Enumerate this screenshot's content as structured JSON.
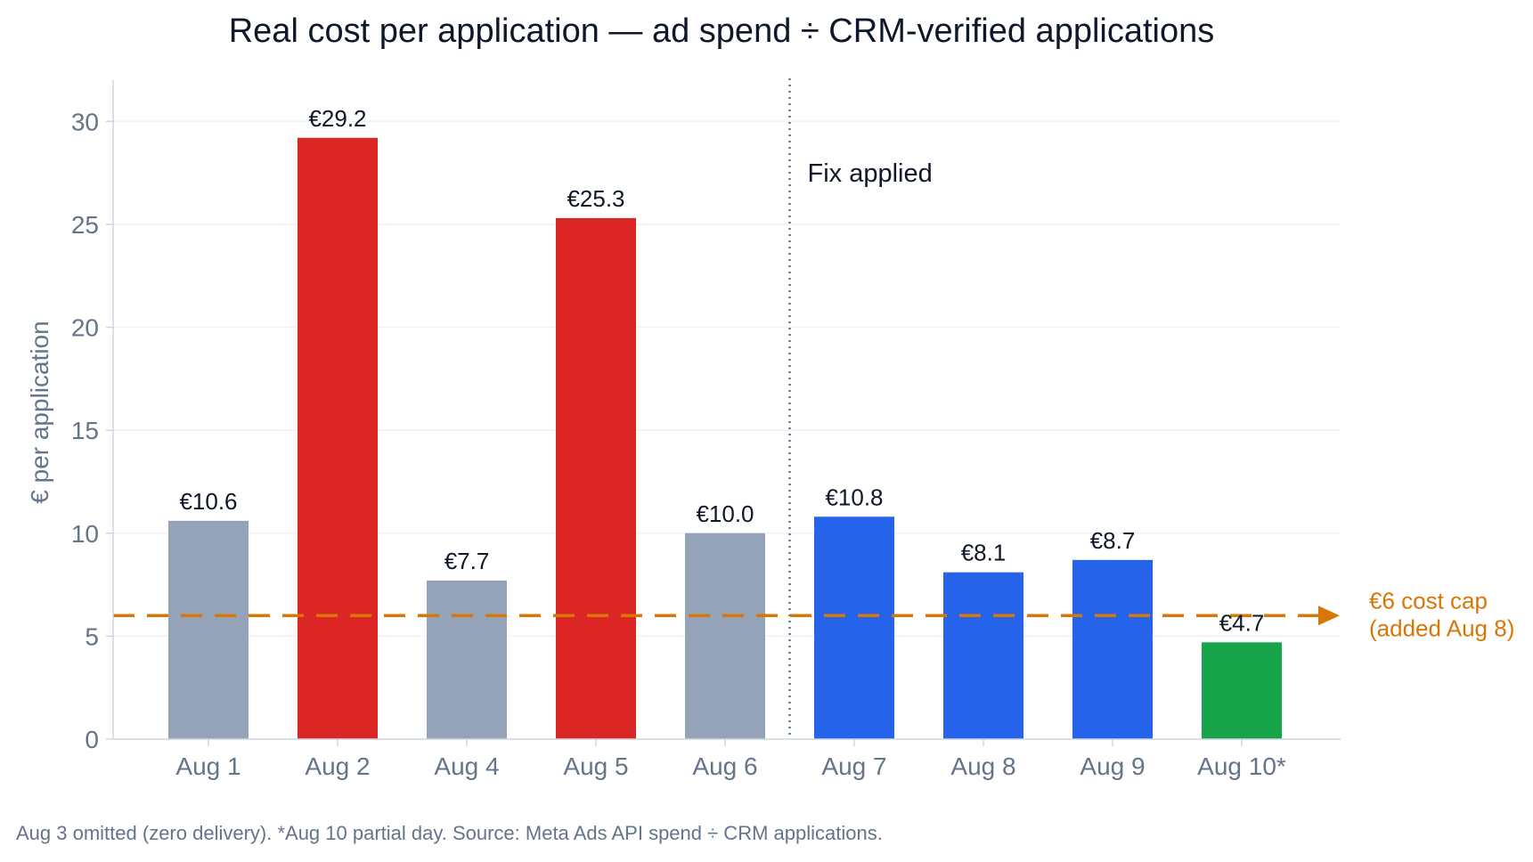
{
  "chart_data": {
    "type": "bar",
    "title": "Real cost per application — ad spend ÷ CRM-verified applications",
    "xlabel": "",
    "ylabel": "€ per application",
    "ylim": [
      0,
      32
    ],
    "yticks": [
      0,
      5,
      10,
      15,
      20,
      25,
      30
    ],
    "grid": true,
    "categories": [
      "Aug 1",
      "Aug 2",
      "Aug 4",
      "Aug 5",
      "Aug 6",
      "Aug 7",
      "Aug 8",
      "Aug 9",
      "Aug 10*"
    ],
    "values": [
      10.6,
      29.2,
      7.7,
      25.3,
      10.0,
      10.8,
      8.1,
      8.7,
      4.7
    ],
    "data_labels": [
      "€10.6",
      "€29.2",
      "€7.7",
      "€25.3",
      "€10.0",
      "€10.8",
      "€8.1",
      "€8.7",
      "€4.7"
    ],
    "bar_colors": [
      "#94a3b8",
      "#dc2626",
      "#94a3b8",
      "#dc2626",
      "#94a3b8",
      "#2563eb",
      "#2563eb",
      "#2563eb",
      "#16a34a"
    ],
    "reference_line": {
      "value": 6,
      "label_lines": [
        "€6 cost cap",
        "(added Aug 8)"
      ],
      "color": "#d97706",
      "style": "dashed"
    },
    "divider": {
      "between": [
        "Aug 6",
        "Aug 7"
      ],
      "label": "Fix applied",
      "style": "dotted",
      "color": "#64748b"
    },
    "footnote": "Aug 3 omitted (zero delivery). *Aug 10 partial day. Source: Meta Ads API spend ÷ CRM applications."
  },
  "colors": {
    "axis_text": "#64748b",
    "title_text": "#0f172a",
    "label_text": "#0f172a",
    "grid": "#eef2f7",
    "axis_line": "#cbd5e1"
  }
}
